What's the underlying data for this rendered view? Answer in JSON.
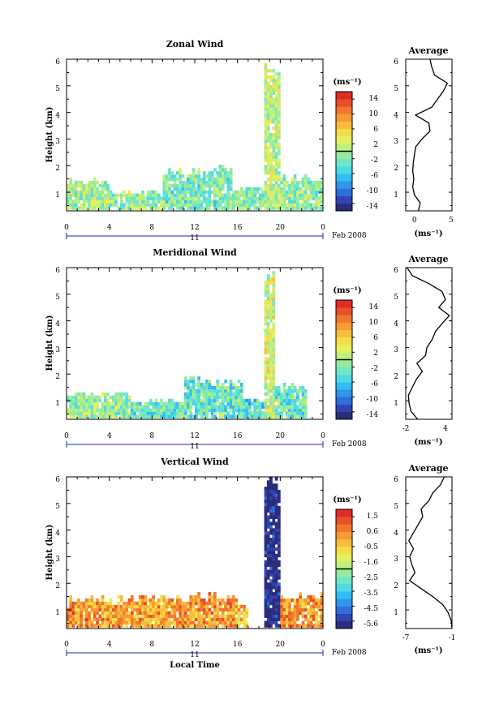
{
  "chart_data": [
    {
      "type": "heatmap",
      "title": "Zonal Wind",
      "ylabel": "Height (km)",
      "xlim": [
        0,
        24
      ],
      "ylim": [
        0.3,
        6
      ],
      "xticks": [
        "0",
        "4",
        "8",
        "12",
        "16",
        "20",
        "0"
      ],
      "yticks": [
        "1",
        "2",
        "3",
        "4",
        "5",
        "6"
      ],
      "day_label": "11",
      "date_label": "Feb 2008",
      "colorbar": {
        "unit": "(ms⁻¹)",
        "range": [
          -16,
          16
        ],
        "tick_labels": [
          "14",
          "10",
          "6",
          "2",
          "-2",
          "-6",
          "-10",
          "-14"
        ],
        "colors": [
          "#2b2d7a",
          "#3145b0",
          "#2f6ddc",
          "#2e96ec",
          "#33bdf2",
          "#4fdbe6",
          "#70e6c8",
          "#96ec9e",
          "#bdf07c",
          "#e2f060",
          "#f5de48",
          "#f8bd3c",
          "#f59a34",
          "#ef782e",
          "#e8502a",
          "#e02c28"
        ]
      },
      "regions": [
        {
          "t": [
            0,
            4
          ],
          "h": [
            0.35,
            1.45
          ],
          "value": 0
        },
        {
          "t": [
            4,
            9
          ],
          "h": [
            0.35,
            1.0
          ],
          "value": -1
        },
        {
          "t": [
            9,
            13.5
          ],
          "h": [
            0.35,
            1.9
          ],
          "value": -2
        },
        {
          "t": [
            13.5,
            15.5
          ],
          "h": [
            0.35,
            2.1
          ],
          "value": -2
        },
        {
          "t": [
            15.5,
            18.5
          ],
          "h": [
            0.35,
            1.2
          ],
          "value": -1
        },
        {
          "t": [
            18.5,
            20
          ],
          "h": [
            0.35,
            5.8
          ],
          "value": 1
        },
        {
          "t": [
            20,
            24
          ],
          "h": [
            0.35,
            1.6
          ],
          "value": -1
        }
      ],
      "average_profile": {
        "title": "Average",
        "xlabel": "(ms⁻¹)",
        "xlim": [
          -2,
          6
        ],
        "xticks": [
          "0",
          "5"
        ],
        "height": [
          0.3,
          0.6,
          0.9,
          1.2,
          1.5,
          1.8,
          2.1,
          2.4,
          2.7,
          3.0,
          3.3,
          3.6,
          3.9,
          4.2,
          4.5,
          4.8,
          5.1,
          5.4,
          5.7,
          6.0
        ],
        "values": [
          0.2,
          0.5,
          -0.5,
          -0.8,
          -0.6,
          -0.8,
          -0.7,
          -0.5,
          -0.3,
          0.8,
          2.2,
          2.0,
          -0.3,
          2.5,
          3.5,
          4.5,
          5.2,
          3.0,
          2.5,
          2.2
        ]
      }
    },
    {
      "type": "heatmap",
      "title": "Meridional Wind",
      "ylabel": "Height (km)",
      "xlim": [
        0,
        24
      ],
      "ylim": [
        0.3,
        6
      ],
      "xticks": [
        "0",
        "4",
        "8",
        "12",
        "16",
        "20",
        "0"
      ],
      "yticks": [
        "1",
        "2",
        "3",
        "4",
        "5",
        "6"
      ],
      "day_label": "11",
      "date_label": "Feb 2008",
      "colorbar": {
        "unit": "(ms⁻¹)",
        "range": [
          -16,
          16
        ],
        "tick_labels": [
          "14",
          "10",
          "6",
          "2",
          "-2",
          "-6",
          "-10",
          "-14"
        ],
        "colors": [
          "#2b2d7a",
          "#3145b0",
          "#2f6ddc",
          "#2e96ec",
          "#33bdf2",
          "#4fdbe6",
          "#70e6c8",
          "#96ec9e",
          "#bdf07c",
          "#e2f060",
          "#f5de48",
          "#f8bd3c",
          "#f59a34",
          "#ef782e",
          "#e8502a",
          "#e02c28"
        ]
      },
      "regions": [
        {
          "t": [
            0,
            6
          ],
          "h": [
            0.35,
            1.3
          ],
          "value": -1
        },
        {
          "t": [
            6,
            11
          ],
          "h": [
            0.35,
            1.0
          ],
          "value": -3
        },
        {
          "t": [
            11,
            16.5
          ],
          "h": [
            0.35,
            1.9
          ],
          "value": -3
        },
        {
          "t": [
            16.5,
            18.5
          ],
          "h": [
            0.35,
            1.1
          ],
          "value": -5
        },
        {
          "t": [
            18.5,
            19.5
          ],
          "h": [
            0.35,
            5.8
          ],
          "value": 2
        },
        {
          "t": [
            19.5,
            22.5
          ],
          "h": [
            0.35,
            1.6
          ],
          "value": -3
        }
      ],
      "average_profile": {
        "title": "Average",
        "xlabel": "(ms⁻¹)",
        "xlim": [
          -2,
          5
        ],
        "xticks": [
          "-2",
          "4"
        ],
        "height": [
          0.3,
          0.6,
          0.9,
          1.2,
          1.5,
          1.8,
          2.1,
          2.4,
          2.7,
          3.0,
          3.3,
          3.6,
          3.9,
          4.2,
          4.5,
          4.8,
          5.1,
          5.4,
          5.7,
          6.0
        ],
        "values": [
          -0.2,
          -1.2,
          -1.5,
          -1.6,
          -1.0,
          -0.4,
          0.5,
          -0.3,
          1.0,
          1.2,
          2.0,
          2.5,
          3.5,
          4.6,
          3.0,
          4.0,
          3.5,
          1.5,
          -1.0,
          -1.8
        ]
      }
    },
    {
      "type": "heatmap",
      "title": "Vertical Wind",
      "ylabel": "Height (km)",
      "xlabel": "Local Time",
      "xlim": [
        0,
        24
      ],
      "ylim": [
        0.3,
        6
      ],
      "xticks": [
        "0",
        "4",
        "8",
        "12",
        "16",
        "20",
        "0"
      ],
      "yticks": [
        "1",
        "2",
        "3",
        "4",
        "5",
        "6"
      ],
      "day_label": "11",
      "date_label": "Feb 2008",
      "colorbar": {
        "unit": "(ms⁻¹)",
        "range": [
          -6,
          2
        ],
        "tick_labels": [
          "1.5",
          "0.6",
          "-0.5",
          "-1.6",
          "-2.5",
          "-3.5",
          "-4.5",
          "-5.6"
        ],
        "colors": [
          "#2b2d7a",
          "#3145b0",
          "#2f6ddc",
          "#2e96ec",
          "#33bdf2",
          "#4fdbe6",
          "#70e6c8",
          "#96ec9e",
          "#bdf07c",
          "#e2f060",
          "#f5de48",
          "#f8bd3c",
          "#f59a34",
          "#ef782e",
          "#e8502a",
          "#e02c28"
        ]
      },
      "regions": [
        {
          "t": [
            0,
            3
          ],
          "h": [
            0.35,
            1.5
          ],
          "value": 0.4
        },
        {
          "t": [
            3,
            12
          ],
          "h": [
            0.35,
            1.5
          ],
          "value": 0.1
        },
        {
          "t": [
            12,
            16
          ],
          "h": [
            0.35,
            1.6
          ],
          "value": 0.2
        },
        {
          "t": [
            16,
            17
          ],
          "h": [
            0.35,
            1.2
          ],
          "value": -0.4
        },
        {
          "t": [
            18.5,
            19.8
          ],
          "h": [
            0.35,
            6.0
          ],
          "value": -5.9
        },
        {
          "t": [
            20,
            24
          ],
          "h": [
            0.35,
            1.6
          ],
          "value": 0.3
        }
      ],
      "average_profile": {
        "title": "Average",
        "xlabel": "(ms⁻¹)",
        "xlim": [
          -7,
          -1
        ],
        "xticks": [
          "-7",
          "-1"
        ],
        "height": [
          0.3,
          0.6,
          0.9,
          1.2,
          1.5,
          1.8,
          2.1,
          2.4,
          2.7,
          3.0,
          3.3,
          3.6,
          3.9,
          4.2,
          4.5,
          4.8,
          5.1,
          5.4,
          5.7,
          6.0
        ],
        "values": [
          -1.0,
          -1.1,
          -1.5,
          -2.2,
          -3.5,
          -5.0,
          -6.5,
          -5.8,
          -6.2,
          -6.5,
          -6.0,
          -6.6,
          -6.0,
          -5.4,
          -4.8,
          -5.0,
          -4.0,
          -3.5,
          -2.5,
          -2.0
        ]
      }
    }
  ]
}
